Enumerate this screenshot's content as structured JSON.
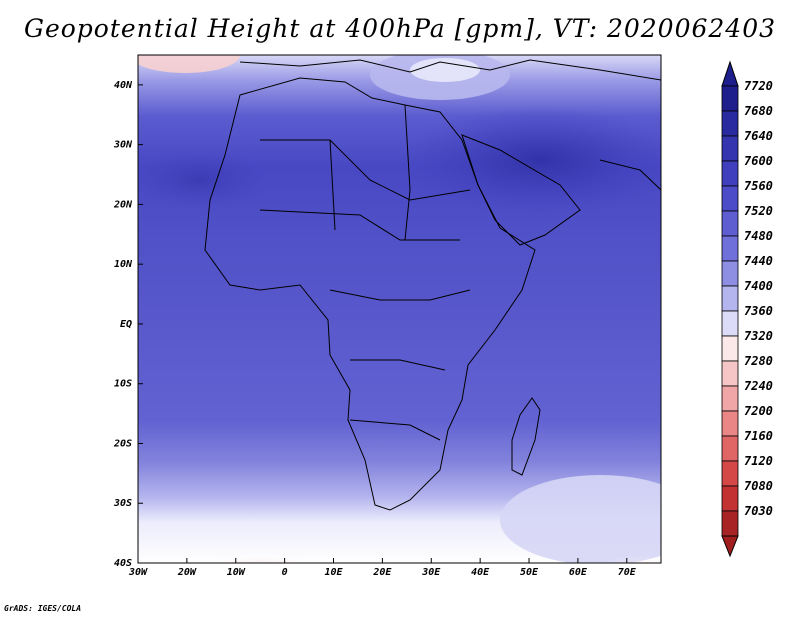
{
  "title": "Geopotential Height at 400hPa [gpm], VT: 2020062403",
  "credit": "GrADS: IGES/COLA",
  "map": {
    "lon_range": [
      -30,
      77
    ],
    "lat_range": [
      -40,
      45
    ],
    "lon_ticks": [
      {
        "value": -30,
        "label": "30W"
      },
      {
        "value": -20,
        "label": "20W"
      },
      {
        "value": -10,
        "label": "10W"
      },
      {
        "value": 0,
        "label": "0"
      },
      {
        "value": 10,
        "label": "10E"
      },
      {
        "value": 20,
        "label": "20E"
      },
      {
        "value": 30,
        "label": "30E"
      },
      {
        "value": 40,
        "label": "40E"
      },
      {
        "value": 50,
        "label": "50E"
      },
      {
        "value": 60,
        "label": "60E"
      },
      {
        "value": 70,
        "label": "70E"
      }
    ],
    "lat_ticks": [
      {
        "value": 40,
        "label": "40N"
      },
      {
        "value": 30,
        "label": "30N"
      },
      {
        "value": 20,
        "label": "20N"
      },
      {
        "value": 10,
        "label": "10N"
      },
      {
        "value": 0,
        "label": "EQ"
      },
      {
        "value": -10,
        "label": "10S"
      },
      {
        "value": -20,
        "label": "20S"
      },
      {
        "value": -30,
        "label": "30S"
      },
      {
        "value": -40,
        "label": "40S"
      }
    ]
  },
  "colorbar": {
    "levels": [
      {
        "label": "7720",
        "color": "#1e1e8c"
      },
      {
        "label": "7680",
        "color": "#2a2aa0"
      },
      {
        "label": "7640",
        "color": "#3535b0"
      },
      {
        "label": "7600",
        "color": "#4040be"
      },
      {
        "label": "7560",
        "color": "#4c4cc8"
      },
      {
        "label": "7520",
        "color": "#5e5ed0"
      },
      {
        "label": "7480",
        "color": "#7070da"
      },
      {
        "label": "7440",
        "color": "#8e8ee2"
      },
      {
        "label": "7400",
        "color": "#b4b4ee"
      },
      {
        "label": "7360",
        "color": "#dcdcf8"
      },
      {
        "label": "7320",
        "color": "#fbe8e8"
      },
      {
        "label": "7280",
        "color": "#f6c6c6"
      },
      {
        "label": "7240",
        "color": "#f0a6a6"
      },
      {
        "label": "7200",
        "color": "#ea8686"
      },
      {
        "label": "7160",
        "color": "#e06666"
      },
      {
        "label": "7120",
        "color": "#d44848"
      },
      {
        "label": "7080",
        "color": "#c23232"
      },
      {
        "label": "7030",
        "color": "#a82424"
      }
    ],
    "below_color": "#a01e1e"
  }
}
